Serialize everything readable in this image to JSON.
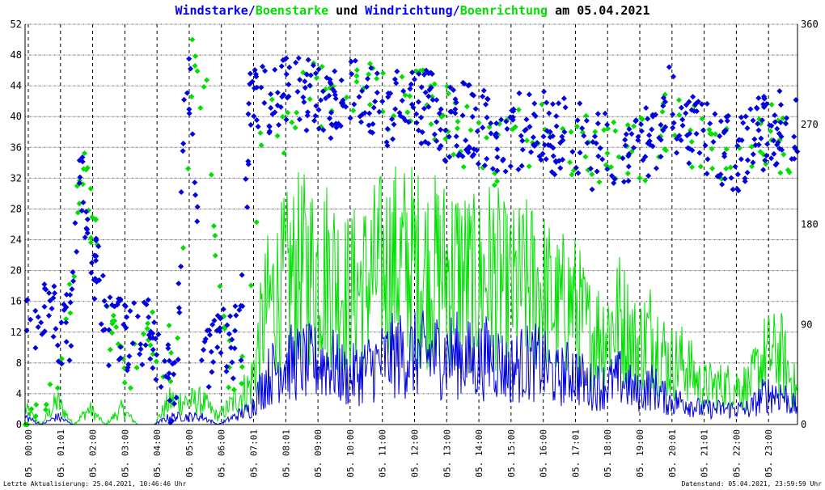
{
  "header": {
    "title_part1": "Windstarke",
    "title_sep1": "/",
    "title_part2": "Boenstarke",
    "title_mid": " und ",
    "title_part3": "Windrichtung",
    "title_sep2": "/",
    "title_part4": "Boenrichtung",
    "title_date": " am 05.04.2021"
  },
  "footer": {
    "left": "Letzte Aktualisierung: 25.04.2021, 10:46:46 Uhr",
    "right": "Datenstand: 05.04.2021, 23:59:59 Uhr"
  },
  "colors": {
    "wind": "#0000e0",
    "gust": "#00e000",
    "grid": "#000000",
    "hgrid": "#c0c0c0"
  },
  "chart_data": {
    "type": "line",
    "y_left": {
      "min": 0,
      "max": 52,
      "ticks": [
        "0",
        "4",
        "8",
        "12",
        "16",
        "20",
        "24",
        "28",
        "32",
        "36",
        "40",
        "44",
        "48",
        "52"
      ]
    },
    "y_right": {
      "min": 0,
      "max": 360,
      "ticks": [
        "0",
        "90",
        "180",
        "270",
        "360"
      ]
    },
    "x_ticks": [
      "05. 00:00",
      "05. 01:01",
      "05. 02:00",
      "05. 03:00",
      "05. 04:00",
      "05. 05:00",
      "05. 06:00",
      "05. 07:01",
      "05. 08:01",
      "05. 09:00",
      "05. 10:00",
      "05. 11:00",
      "05. 12:00",
      "05. 13:00",
      "05. 14:00",
      "05. 15:00",
      "05. 16:00",
      "05. 17:01",
      "05. 18:00",
      "05. 19:00",
      "05. 20:01",
      "05. 21:01",
      "05. 22:00",
      "05. 23:00"
    ],
    "series": [
      {
        "name": "Windstarke",
        "kind": "line",
        "axis": "left",
        "hours": [
          0,
          0.5,
          1,
          1.5,
          2,
          2.5,
          3,
          3.5,
          4,
          4.5,
          5,
          5.5,
          6,
          6.5,
          7,
          7.5,
          8,
          8.5,
          9,
          9.5,
          10,
          10.5,
          11,
          11.5,
          12,
          12.5,
          13,
          13.5,
          14,
          14.5,
          15,
          15.5,
          16,
          16.5,
          17,
          17.5,
          18,
          18.5,
          19,
          19.5,
          20,
          20.5,
          21,
          21.5,
          22,
          22.5,
          23,
          23.5,
          24
        ],
        "values": [
          1,
          0,
          1,
          0,
          0,
          0,
          0,
          0,
          0,
          1,
          1,
          1,
          0,
          1,
          2,
          6,
          8,
          8,
          8,
          8,
          6,
          7,
          8,
          9,
          9,
          9,
          9,
          9,
          8,
          9,
          7,
          8,
          8,
          6,
          7,
          5,
          5,
          6,
          4,
          5,
          3,
          3,
          2,
          2,
          2,
          2,
          4,
          4,
          2
        ]
      },
      {
        "name": "Boenstarke",
        "kind": "line",
        "axis": "left",
        "hours": [
          0,
          0.5,
          1,
          1.5,
          2,
          2.5,
          3,
          3.5,
          4,
          4.5,
          5,
          5.5,
          6,
          6.5,
          7,
          7.5,
          8,
          8.5,
          9,
          9.5,
          10,
          10.5,
          11,
          11.5,
          12,
          12.5,
          13,
          13.5,
          14,
          14.5,
          15,
          15.5,
          16,
          16.5,
          17,
          17.5,
          18,
          18.5,
          19,
          19.5,
          20,
          20.5,
          21,
          21.5,
          22,
          22.5,
          23,
          23.5,
          24
        ],
        "values": [
          2,
          0,
          3,
          0,
          2,
          0,
          2,
          0,
          0,
          3,
          3,
          3,
          1,
          3,
          5,
          15,
          18,
          20,
          20,
          20,
          17,
          18,
          20,
          21,
          21,
          20,
          20,
          20,
          18,
          20,
          17,
          18,
          18,
          15,
          16,
          12,
          12,
          14,
          10,
          12,
          8,
          8,
          5,
          5,
          5,
          5,
          9,
          9,
          4
        ]
      },
      {
        "name": "Windrichtung",
        "kind": "scatter",
        "axis": "right",
        "hours": [
          0,
          0.3,
          0.6,
          0.9,
          1.1,
          1.4,
          1.7,
          2,
          2.3,
          2.6,
          2.9,
          3.2,
          3.5,
          3.8,
          4.1,
          4.4,
          4.7,
          5,
          5.2,
          5.5,
          5.8,
          6.1,
          6.4,
          6.7,
          7,
          7.5,
          8,
          8.5,
          9,
          9.5,
          10,
          10.5,
          11,
          11.5,
          12,
          12.5,
          13,
          13.5,
          14,
          14.5,
          15,
          15.5,
          16,
          16.5,
          17,
          17.5,
          18,
          18.5,
          19,
          19.5,
          20,
          20.5,
          21,
          21.5,
          22,
          22.5,
          23,
          23.5,
          24
        ],
        "values": [
          101,
          97,
          97,
          96,
          80,
          90,
          235,
          155,
          125,
          85,
          82,
          80,
          80,
          81,
          70,
          40,
          20,
          330,
          280,
          55,
          62,
          70,
          75,
          80,
          290,
          290,
          305,
          300,
          295,
          290,
          290,
          300,
          280,
          285,
          290,
          285,
          270,
          275,
          270,
          265,
          260,
          265,
          270,
          255,
          265,
          245,
          250,
          240,
          250,
          250,
          290,
          260,
          260,
          250,
          240,
          255,
          265,
          270,
          270
        ]
      },
      {
        "name": "Boenrichtung",
        "kind": "scatter",
        "axis": "right",
        "hours": [
          0,
          0.6,
          1.2,
          1.8,
          2.4,
          3,
          3.6,
          4.2,
          4.8,
          5.2,
          5.6,
          6.2,
          6.8,
          7.4,
          8,
          8.6,
          9.2,
          9.8,
          10.4,
          11,
          11.6,
          12.2,
          12.8,
          13.4,
          14,
          14.6,
          15.2,
          15.8,
          16.4,
          17,
          17.6,
          18.2,
          18.8,
          19.4,
          20,
          20.6,
          21.2,
          21.8,
          22.4,
          23,
          23.6,
          24
        ],
        "values": [
          0,
          0,
          75,
          235,
          125,
          40,
          75,
          70,
          55,
          325,
          300,
          60,
          50,
          290,
          270,
          300,
          295,
          275,
          300,
          290,
          285,
          290,
          285,
          265,
          255,
          245,
          255,
          260,
          255,
          245,
          250,
          240,
          255,
          245,
          275,
          260,
          255,
          240,
          245,
          260,
          255,
          245
        ]
      }
    ]
  }
}
